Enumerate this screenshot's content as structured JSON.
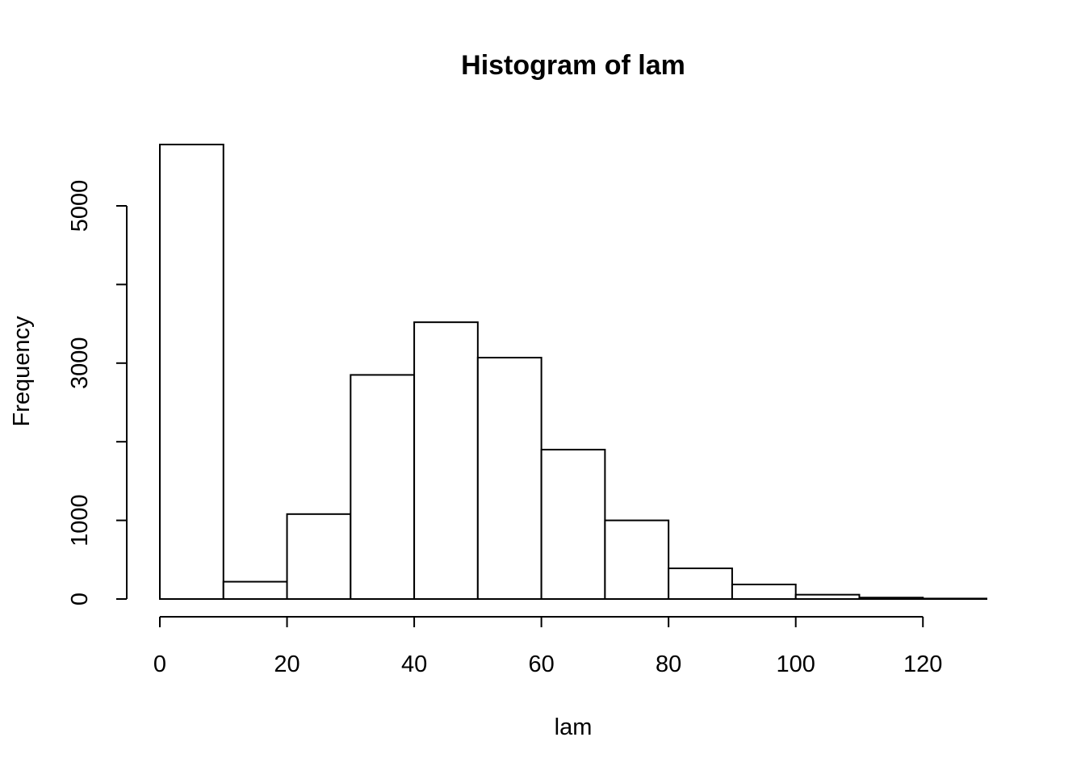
{
  "chart_data": {
    "type": "bar",
    "title": "Histogram of lam",
    "xlabel": "lam",
    "ylabel": "Frequency",
    "bin_edges": [
      0,
      10,
      20,
      30,
      40,
      50,
      60,
      70,
      80,
      90,
      100,
      110,
      120,
      130
    ],
    "values": [
      5780,
      220,
      1080,
      2850,
      3520,
      3070,
      1900,
      1000,
      390,
      185,
      55,
      18,
      6
    ],
    "xlim": [
      0,
      130
    ],
    "ylim": [
      0,
      5780
    ],
    "x_ticks": [
      0,
      20,
      40,
      60,
      80,
      100,
      120
    ],
    "x_tick_labels": [
      "0",
      "20",
      "40",
      "60",
      "80",
      "100",
      "120"
    ],
    "y_ticks": [
      0,
      1000,
      2000,
      3000,
      4000,
      5000
    ],
    "y_tick_labels": [
      "0",
      "1000",
      "",
      "3000",
      "",
      "5000"
    ],
    "grid": false,
    "colors": {
      "bar_fill": "#ffffff",
      "bar_edge": "#000000"
    }
  }
}
